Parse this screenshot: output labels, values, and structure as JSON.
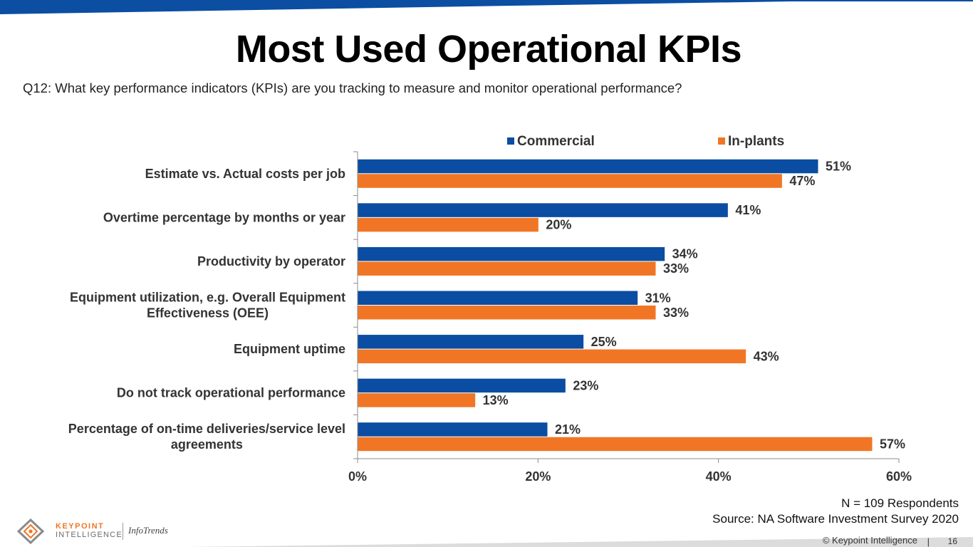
{
  "slide": {
    "title": "Most Used Operational KPIs",
    "question": "Q12: What key performance indicators (KPIs) are you tracking to measure and monitor operational performance?",
    "respondents": "N = 109 Respondents",
    "source": "Source: NA Software Investment Survey 2020",
    "copyright": "© Keypoint Intelligence",
    "separator": "|",
    "page_number": "16"
  },
  "logo": {
    "line1": "KEYPOINT",
    "line2": "INTELLIGENCE",
    "brand2": "InfoTrends"
  },
  "colors": {
    "commercial": "#0a4da2",
    "inplants": "#f07625",
    "top_band": "#0b4ea2"
  },
  "chart_data": {
    "type": "bar",
    "orientation": "horizontal",
    "title": "",
    "xlabel": "",
    "ylabel": "",
    "categories": [
      "Estimate vs. Actual costs per job",
      "Overtime percentage by months or year",
      "Productivity by operator",
      "Equipment utilization, e.g. Overall Equipment Effectiveness (OEE)",
      "Equipment uptime",
      "Do not track operational performance",
      "Percentage of on-time deliveries/service level agreements"
    ],
    "category_lines": [
      [
        "Estimate vs. Actual costs per job"
      ],
      [
        "Overtime percentage by months or year"
      ],
      [
        "Productivity by operator"
      ],
      [
        "Equipment utilization, e.g. Overall Equipment",
        "Effectiveness (OEE)"
      ],
      [
        "Equipment uptime"
      ],
      [
        "Do not track operational performance"
      ],
      [
        "Percentage of on-time deliveries/service level",
        "agreements"
      ]
    ],
    "series": [
      {
        "name": "Commercial",
        "values": [
          51,
          41,
          34,
          31,
          25,
          23,
          21
        ],
        "labels": [
          "51%",
          "41%",
          "34%",
          "31%",
          "25%",
          "23%",
          "21%"
        ]
      },
      {
        "name": "In-plants",
        "values": [
          47,
          20,
          33,
          33,
          43,
          13,
          57
        ],
        "labels": [
          "47%",
          "20%",
          "33%",
          "33%",
          "43%",
          "13%",
          "57%"
        ]
      }
    ],
    "xlim": [
      0,
      60
    ],
    "xticks": [
      0,
      20,
      40,
      60
    ],
    "xtick_labels": [
      "0%",
      "20%",
      "40%",
      "60%"
    ],
    "grid": false,
    "legend_position": "top"
  }
}
